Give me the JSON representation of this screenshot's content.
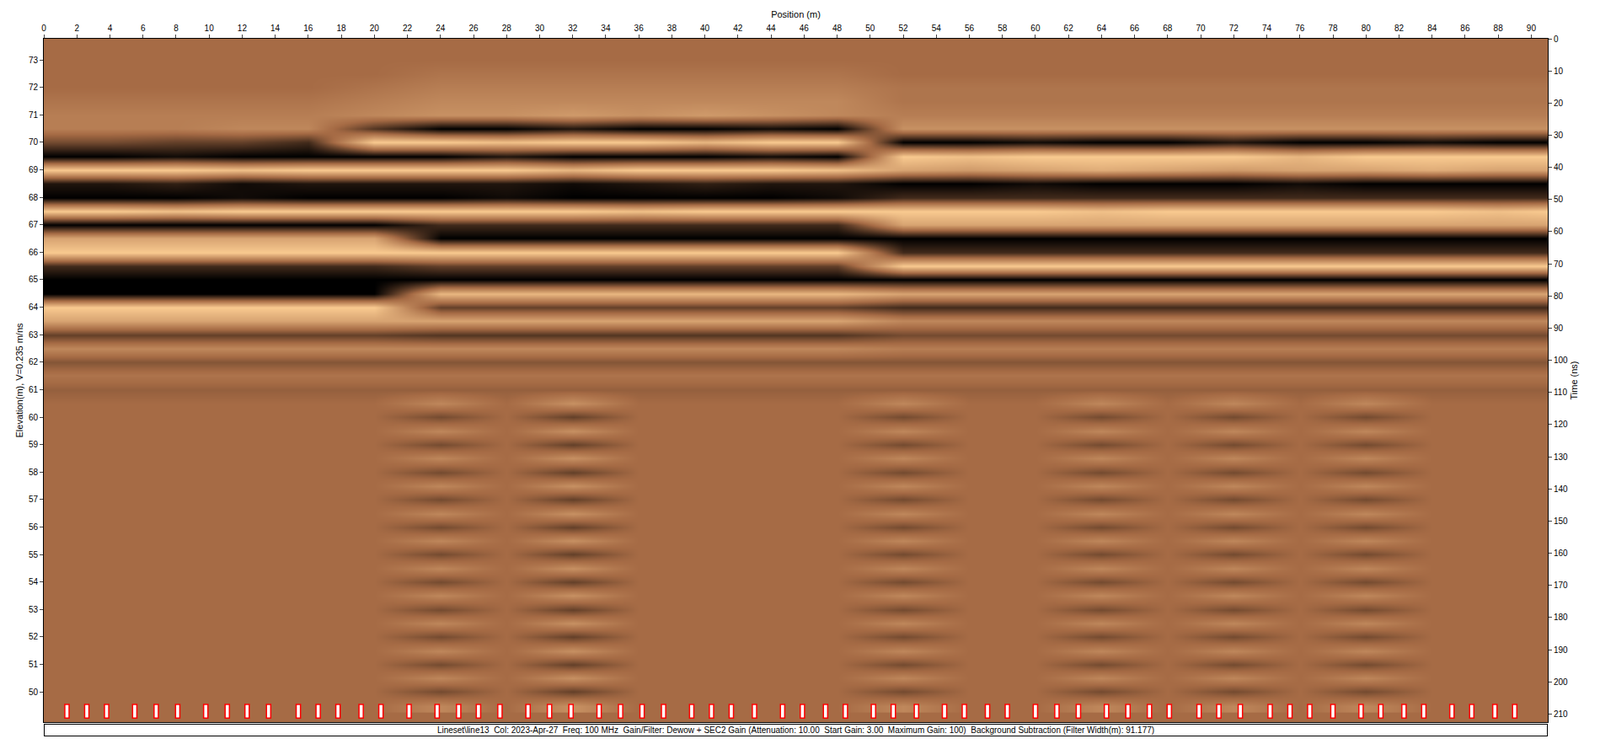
{
  "chart_data": {
    "type": "heatmap",
    "x_label": "Position (m)",
    "y_label": "Elevation(m), V=0.235 m/ns",
    "y2_label": "Time (ns)",
    "caption": "Lineset\\line13  Col: 2023-Apr-27  Freq: 100 MHz  Gain/Filter: Dewow + SEC2 Gain (Attenuation: 10.00  Start Gain: 3.00  Maximum Gain: 100)  Background Subtraction (Filter Width(m): 91.177)",
    "xlim": [
      0,
      91
    ],
    "xticks": [
      0,
      2,
      4,
      6,
      8,
      10,
      12,
      14,
      16,
      18,
      20,
      22,
      24,
      26,
      28,
      30,
      32,
      34,
      36,
      38,
      40,
      42,
      44,
      46,
      48,
      50,
      52,
      54,
      56,
      58,
      60,
      62,
      64,
      66,
      68,
      70,
      72,
      74,
      76,
      78,
      80,
      82,
      84,
      86,
      88,
      90
    ],
    "ylim": [
      48.9,
      73.77
    ],
    "yticks": [
      50,
      51,
      52,
      53,
      54,
      55,
      56,
      57,
      58,
      59,
      60,
      61,
      62,
      63,
      64,
      65,
      66,
      67,
      68,
      69,
      70,
      71,
      72,
      73
    ],
    "y2lim": [
      212.5,
      0
    ],
    "y2ticks": [
      0,
      10,
      20,
      30,
      40,
      50,
      60,
      70,
      80,
      90,
      100,
      110,
      120,
      130,
      140,
      150,
      160,
      170,
      180,
      190,
      200,
      210
    ],
    "grid": false,
    "zlim": [
      -1,
      1
    ],
    "colors": [
      "#000000",
      "#a66b45",
      "#f9ca90"
    ],
    "fiducials": [
      1.4,
      2.6,
      3.8,
      5.5,
      6.8,
      8.1,
      9.8,
      11.1,
      12.3,
      13.6,
      15.4,
      16.6,
      17.8,
      19.2,
      20.4,
      22.1,
      23.8,
      25.1,
      26.3,
      27.6,
      29.3,
      30.6,
      31.9,
      33.6,
      34.9,
      36.2,
      37.5,
      39.2,
      40.4,
      41.6,
      43.0,
      44.7,
      45.9,
      47.3,
      48.5,
      50.2,
      51.4,
      52.8,
      54.5,
      55.7,
      57.1,
      58.3,
      60.0,
      61.3,
      62.6,
      64.3,
      65.6,
      66.9,
      68.1,
      69.9,
      71.1,
      72.4,
      74.2,
      75.4,
      76.6,
      78.0,
      79.7,
      80.9,
      82.3,
      83.5,
      85.2,
      86.4,
      87.8,
      89.0
    ],
    "x": [
      0,
      4,
      8,
      12,
      16,
      20,
      24,
      28,
      32,
      36,
      40,
      44,
      48,
      52,
      56,
      60,
      64,
      68,
      72,
      76,
      80,
      84,
      88,
      91
    ],
    "y": [
      73.5,
      73,
      72.5,
      72,
      71.5,
      71,
      70.5,
      70,
      69.5,
      69,
      68.5,
      68,
      67.5,
      67,
      66.5,
      66,
      65.5,
      65,
      64.5,
      64,
      63.5,
      63,
      62.5,
      62,
      61.5,
      61,
      60.5,
      60,
      59.5,
      59,
      58.5,
      58,
      57.5,
      57,
      56.5,
      56,
      55.5,
      55,
      54.5,
      54,
      53.5,
      53,
      52.5,
      52,
      51.5,
      51,
      50.5,
      50,
      49.5
    ],
    "z": [
      [
        0,
        0,
        0,
        0,
        0,
        0,
        0,
        0,
        0,
        0,
        0,
        0,
        0,
        0,
        0,
        0,
        0,
        0,
        0,
        0,
        0,
        0,
        0,
        0
      ],
      [
        0,
        0,
        0,
        0,
        0,
        0,
        0,
        0,
        0,
        0,
        0,
        0,
        0,
        0,
        0,
        0,
        0,
        0,
        0,
        0,
        0,
        0,
        0,
        0
      ],
      [
        0,
        0,
        0,
        0,
        0,
        0,
        0.1,
        0.1,
        0.1,
        0.1,
        0.1,
        0.1,
        0.1,
        0,
        0,
        0,
        0,
        0,
        0,
        0,
        0,
        0,
        0,
        0
      ],
      [
        0,
        0,
        0,
        0,
        0,
        0.1,
        0.2,
        0.2,
        0.2,
        0.2,
        0.2,
        0.2,
        0.2,
        0.1,
        0.1,
        0.1,
        0.1,
        0.1,
        0.1,
        0.1,
        0.1,
        0.1,
        0.1,
        0.1
      ],
      [
        0.1,
        0.1,
        0.1,
        0.1,
        0.1,
        0.2,
        0.3,
        0.3,
        0.3,
        0.3,
        0.3,
        0.3,
        0.3,
        0.1,
        0.1,
        0.1,
        0.1,
        0.1,
        0.1,
        0.1,
        0.1,
        0.1,
        0.1,
        0.1
      ],
      [
        0.2,
        0.2,
        0.2,
        0.2,
        0.2,
        0.3,
        0.4,
        0.4,
        0.5,
        0.4,
        0.5,
        0.4,
        0.3,
        0.2,
        0.2,
        0.2,
        0.2,
        0.2,
        0.2,
        0.2,
        0.2,
        0.2,
        0.2,
        0.2
      ],
      [
        0.2,
        0.2,
        0.2,
        0.3,
        0.3,
        -0.5,
        -1,
        -1,
        -0.8,
        -1,
        -1,
        -0.9,
        -1,
        0.4,
        0.4,
        0.4,
        0.4,
        0.4,
        0.4,
        0.4,
        0.4,
        0.4,
        0.4,
        0.4
      ],
      [
        -0.3,
        -0.3,
        -0.4,
        -0.4,
        -0.6,
        1,
        1,
        0.9,
        1,
        1,
        0.8,
        1,
        1,
        -1,
        -1,
        -0.9,
        -1,
        -1,
        -0.8,
        -1,
        -1,
        -0.9,
        -1,
        -1
      ],
      [
        -1,
        -1,
        -0.9,
        -1,
        -1,
        -1,
        -1,
        -0.8,
        -1,
        -1,
        -1,
        -0.9,
        -1,
        1,
        0.9,
        1,
        1,
        1,
        1,
        0.8,
        1,
        1,
        1,
        1
      ],
      [
        1,
        1,
        1,
        0.9,
        1,
        1,
        1,
        1,
        0.8,
        1,
        1,
        1,
        0.9,
        0.6,
        0.5,
        0.6,
        0.7,
        0.6,
        0.5,
        0.6,
        0.6,
        0.7,
        0.6,
        0.6
      ],
      [
        -0.8,
        -0.8,
        -0.7,
        -0.9,
        -0.8,
        -0.8,
        -0.8,
        -0.8,
        -0.9,
        -0.8,
        -0.7,
        -0.8,
        -0.8,
        -1,
        -1,
        -0.9,
        -1,
        -1,
        -1,
        -0.9,
        -1,
        -1,
        -1,
        -1
      ],
      [
        -1,
        -1,
        -1,
        -0.9,
        -1,
        -1,
        -1,
        -0.9,
        -1,
        -1,
        -1,
        -1,
        -0.9,
        -0.6,
        -0.6,
        -0.6,
        -0.6,
        -0.6,
        -0.6,
        -0.6,
        -0.6,
        -0.6,
        -0.6,
        -0.6
      ],
      [
        1,
        1,
        0.9,
        1,
        1,
        1,
        1,
        1,
        1,
        0.9,
        1,
        1,
        1,
        1,
        1,
        1,
        0.9,
        1,
        1,
        1,
        1,
        1,
        0.9,
        1
      ],
      [
        -1,
        -1,
        -1,
        -1,
        -1,
        -1,
        -0.6,
        -0.6,
        -0.6,
        -0.6,
        -0.6,
        -0.6,
        -0.6,
        0.6,
        0.6,
        0.6,
        0.6,
        0.6,
        0.6,
        0.6,
        0.6,
        0.6,
        0.6,
        0.6
      ],
      [
        0.6,
        0.6,
        0.6,
        0.6,
        0.6,
        0.6,
        -1,
        -1,
        -1,
        -1,
        -1,
        -1,
        -1,
        -1,
        -1,
        -1,
        -1,
        -1,
        -1,
        -1,
        -1,
        -1,
        -1,
        -1
      ],
      [
        1,
        1,
        1,
        1,
        1,
        1,
        1,
        1,
        1,
        1,
        1,
        1,
        1,
        -0.6,
        -0.6,
        -0.6,
        -0.6,
        -0.6,
        -0.6,
        -0.6,
        -0.6,
        -0.6,
        -0.6,
        -0.6
      ],
      [
        -0.6,
        -0.6,
        -0.6,
        -0.6,
        -0.6,
        -0.6,
        -0.4,
        -0.4,
        -0.4,
        -0.4,
        -0.4,
        -0.4,
        -0.4,
        1,
        1,
        1,
        1,
        1,
        1,
        1,
        1,
        1,
        1,
        1
      ],
      [
        -1,
        -1,
        -1,
        -1,
        -1,
        -1,
        -1,
        -1,
        -1,
        -1,
        -1,
        -1,
        -1,
        -1,
        -1,
        -1,
        -1,
        -1,
        -1,
        -1,
        -1,
        -1,
        -1,
        -1
      ],
      [
        -1,
        -1,
        -1,
        -1,
        -1,
        -1,
        0.8,
        0.8,
        0.8,
        0.8,
        0.8,
        0.8,
        0.8,
        0.6,
        0.6,
        0.6,
        0.6,
        0.6,
        0.6,
        0.6,
        0.6,
        0.6,
        0.6,
        0.6
      ],
      [
        1,
        1,
        1,
        1,
        1,
        1,
        -0.4,
        -0.4,
        -0.4,
        -0.4,
        -0.4,
        -0.4,
        -0.4,
        -0.6,
        -0.6,
        -0.6,
        -0.6,
        -0.6,
        -0.6,
        -0.6,
        -0.6,
        -0.6,
        -0.6,
        -0.6
      ],
      [
        0.6,
        0.6,
        0.6,
        0.6,
        0.6,
        0.6,
        0.6,
        0.6,
        0.6,
        0.6,
        0.6,
        0.6,
        0.6,
        0.3,
        0.3,
        0.3,
        0.3,
        0.3,
        0.3,
        0.3,
        0.3,
        0.3,
        0.3,
        0.3
      ],
      [
        -0.4,
        -0.4,
        -0.4,
        -0.4,
        -0.4,
        -0.4,
        -0.5,
        -0.5,
        -0.5,
        -0.5,
        -0.5,
        -0.5,
        -0.5,
        -0.3,
        -0.3,
        -0.3,
        -0.3,
        -0.3,
        -0.3,
        -0.3,
        -0.3,
        -0.3,
        -0.3,
        -0.3
      ],
      [
        0.3,
        0.3,
        0.3,
        0.3,
        0.3,
        0.3,
        0.3,
        0.3,
        0.3,
        0.3,
        0.3,
        0.3,
        0.3,
        0.2,
        0.2,
        0.2,
        0.2,
        0.2,
        0.2,
        0.2,
        0.2,
        0.2,
        0.2,
        0.2
      ],
      [
        -0.2,
        -0.2,
        -0.2,
        -0.2,
        -0.2,
        -0.2,
        -0.2,
        -0.2,
        -0.2,
        -0.2,
        -0.2,
        -0.2,
        -0.2,
        -0.2,
        -0.2,
        -0.2,
        -0.2,
        -0.2,
        -0.2,
        -0.2,
        -0.2,
        -0.2,
        -0.2,
        -0.2
      ],
      [
        0.1,
        0.1,
        0.1,
        0.1,
        0.1,
        0.1,
        0.1,
        0.1,
        0.1,
        0.1,
        0.1,
        0.1,
        0.1,
        0.1,
        0.1,
        0.1,
        0.1,
        0.1,
        0.1,
        0.1,
        0.1,
        0.1,
        0.1,
        0.1
      ],
      [
        -0.1,
        -0.1,
        -0.1,
        -0.1,
        -0.1,
        -0.1,
        -0.1,
        -0.1,
        -0.1,
        -0.1,
        -0.1,
        -0.1,
        -0.1,
        -0.1,
        -0.1,
        -0.1,
        -0.1,
        -0.1,
        -0.1,
        -0.1,
        -0.1,
        -0.1,
        -0.1,
        -0.1
      ],
      [
        0,
        0,
        0,
        0,
        0,
        0,
        0.3,
        0,
        0.4,
        0,
        0,
        0,
        0,
        0.3,
        0,
        0,
        0.3,
        0,
        0.3,
        0,
        0.3,
        0,
        0,
        0
      ],
      [
        0,
        0,
        0,
        0,
        0,
        0,
        -0.3,
        0,
        -0.4,
        0,
        0,
        0,
        0,
        -0.3,
        0,
        0,
        -0.3,
        0,
        -0.3,
        0,
        -0.3,
        0,
        0,
        0
      ],
      [
        0,
        0,
        0,
        0,
        0,
        0,
        0.3,
        0,
        0.4,
        0,
        0,
        0,
        0,
        0.3,
        0,
        0,
        0.3,
        0,
        0.3,
        0,
        0.3,
        0,
        0,
        0
      ],
      [
        0,
        0,
        0,
        0,
        0,
        0,
        -0.3,
        0,
        -0.4,
        0,
        0,
        0,
        0,
        -0.3,
        0,
        0,
        -0.3,
        0,
        -0.3,
        0,
        -0.3,
        0,
        0,
        0
      ],
      [
        0,
        0,
        0,
        0,
        0,
        0,
        0.3,
        0,
        0.4,
        0,
        0,
        0,
        0,
        0.3,
        0,
        0,
        0.3,
        0,
        0.3,
        0,
        0.3,
        0,
        0,
        0
      ],
      [
        0,
        0,
        0,
        0,
        0,
        0,
        -0.3,
        0,
        -0.4,
        0,
        0,
        0,
        0,
        -0.3,
        0,
        0,
        -0.3,
        0,
        -0.3,
        0,
        -0.3,
        0,
        0,
        0
      ],
      [
        0,
        0,
        0,
        0,
        0,
        0,
        0.3,
        0,
        0.4,
        0,
        0,
        0,
        0,
        0.3,
        0,
        0,
        0.3,
        0,
        0.3,
        0,
        0.3,
        0,
        0,
        0
      ],
      [
        0,
        0,
        0,
        0,
        0,
        0,
        -0.3,
        0,
        -0.4,
        0,
        0,
        0,
        0,
        -0.3,
        0,
        0,
        -0.3,
        0,
        -0.3,
        0,
        -0.3,
        0,
        0,
        0
      ],
      [
        0,
        0,
        0,
        0,
        0,
        0,
        0.3,
        0,
        0.4,
        0,
        0,
        0,
        0,
        0.3,
        0,
        0,
        0.3,
        0,
        0.3,
        0,
        0.3,
        0,
        0,
        0
      ],
      [
        0,
        0,
        0,
        0,
        0,
        0,
        -0.3,
        0,
        -0.4,
        0,
        0,
        0,
        0,
        -0.3,
        0,
        0,
        -0.3,
        0,
        -0.3,
        0,
        -0.3,
        0,
        0,
        0
      ],
      [
        0,
        0,
        0,
        0,
        0,
        0,
        0.3,
        0,
        0.4,
        0,
        0,
        0,
        0,
        0.3,
        0,
        0,
        0.3,
        0,
        0.3,
        0,
        0.3,
        0,
        0,
        0
      ],
      [
        0,
        0,
        0,
        0,
        0,
        0,
        -0.3,
        0,
        -0.4,
        0,
        0,
        0,
        0,
        -0.3,
        0,
        0,
        -0.3,
        0,
        -0.3,
        0,
        -0.3,
        0,
        0,
        0
      ],
      [
        0,
        0,
        0,
        0,
        0,
        0,
        0.3,
        0,
        0.4,
        0,
        0,
        0,
        0,
        0.3,
        0,
        0,
        0.3,
        0,
        0.3,
        0,
        0.3,
        0,
        0,
        0
      ],
      [
        0,
        0,
        0,
        0,
        0,
        0,
        -0.3,
        0,
        -0.4,
        0,
        0,
        0,
        0,
        -0.3,
        0,
        0,
        -0.3,
        0,
        -0.3,
        0,
        -0.3,
        0,
        0,
        0
      ],
      [
        0,
        0,
        0,
        0,
        0,
        0,
        0.3,
        0,
        0.4,
        0,
        0,
        0,
        0,
        0.3,
        0,
        0,
        0.3,
        0,
        0.3,
        0,
        0.3,
        0,
        0,
        0
      ],
      [
        0,
        0,
        0,
        0,
        0,
        0,
        -0.3,
        0,
        -0.4,
        0,
        0,
        0,
        0,
        -0.3,
        0,
        0,
        -0.3,
        0,
        -0.3,
        0,
        -0.3,
        0,
        0,
        0
      ],
      [
        0,
        0,
        0,
        0,
        0,
        0,
        0.3,
        0,
        0.4,
        0,
        0,
        0,
        0,
        0.3,
        0,
        0,
        0.3,
        0,
        0.3,
        0,
        0.3,
        0,
        0,
        0
      ],
      [
        0,
        0,
        0,
        0,
        0,
        0,
        -0.3,
        0,
        -0.4,
        0,
        0,
        0,
        0,
        -0.3,
        0,
        0,
        -0.3,
        0,
        -0.3,
        0,
        -0.3,
        0,
        0,
        0
      ],
      [
        0,
        0,
        0,
        0,
        0,
        0,
        0.3,
        0,
        0.4,
        0,
        0,
        0,
        0,
        0.3,
        0,
        0,
        0.3,
        0,
        0.3,
        0,
        0.3,
        0,
        0,
        0
      ],
      [
        0,
        0,
        0,
        0,
        0,
        0,
        -0.3,
        0,
        -0.4,
        0,
        0,
        0,
        0,
        -0.3,
        0,
        0,
        -0.3,
        0,
        -0.3,
        0,
        -0.3,
        0,
        0,
        0
      ],
      [
        0,
        0,
        0,
        0,
        0,
        0,
        0.3,
        0,
        0.4,
        0,
        0,
        0,
        0,
        0.3,
        0,
        0,
        0.3,
        0,
        0.3,
        0,
        0.3,
        0,
        0,
        0
      ],
      [
        0,
        0,
        0,
        0,
        0,
        0,
        -0.3,
        0,
        -0.4,
        0,
        0,
        0,
        0,
        -0.3,
        0,
        0,
        -0.3,
        0,
        -0.3,
        0,
        -0.3,
        0,
        0,
        0
      ],
      [
        0,
        0,
        0,
        0,
        0,
        0,
        0.3,
        0,
        0.4,
        0,
        0,
        0,
        0,
        0.3,
        0,
        0,
        0.3,
        0,
        0.3,
        0,
        0.3,
        0,
        0,
        0
      ]
    ]
  }
}
